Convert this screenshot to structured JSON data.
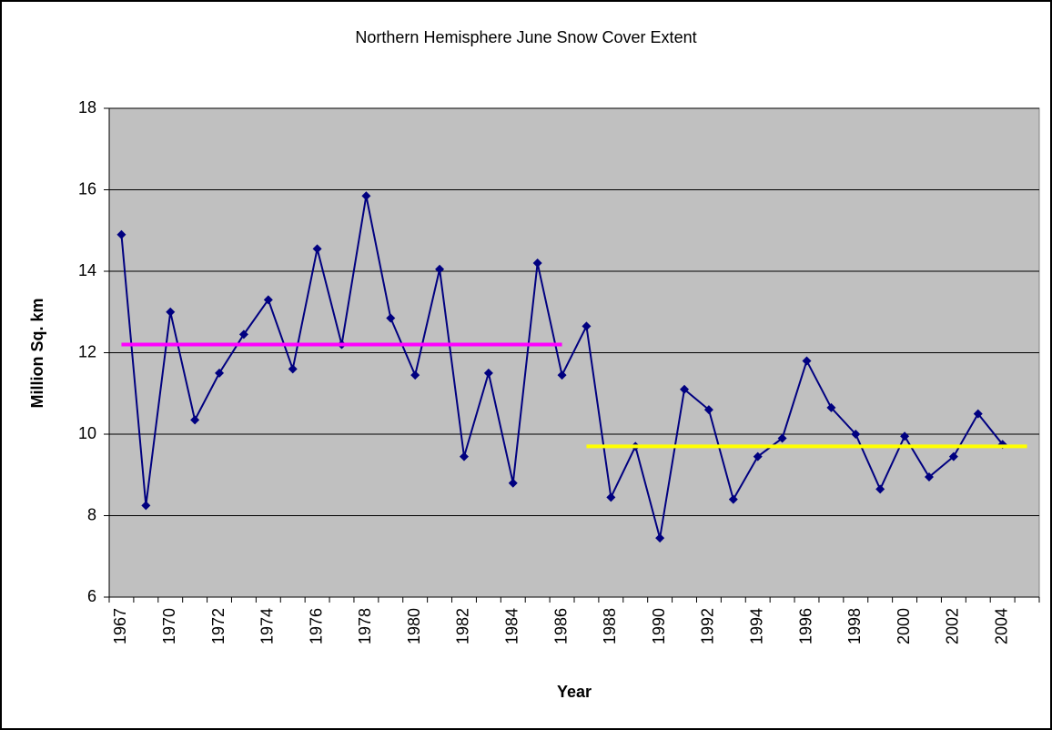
{
  "chart_data": {
    "type": "line",
    "title": "Northern Hemisphere June Snow Cover Extent",
    "x_label": "Year",
    "y_label": "Million Sq. km",
    "categories": [
      "1967",
      null,
      "1970",
      null,
      "1972",
      null,
      "1974",
      null,
      "1976",
      null,
      "1978",
      null,
      "1980",
      null,
      "1982",
      null,
      "1984",
      null,
      "1986",
      null,
      "1988",
      null,
      "1990",
      null,
      "1992",
      null,
      "1994",
      null,
      "1996",
      null,
      "1998",
      null,
      "2000",
      null,
      "2002",
      null,
      "2004",
      null
    ],
    "series": [
      {
        "color": "#000080",
        "marker": "diamond",
        "values": [
          14.9,
          8.25,
          13.0,
          10.35,
          11.5,
          12.45,
          13.3,
          11.6,
          14.55,
          12.2,
          15.85,
          12.85,
          11.45,
          14.05,
          9.45,
          11.5,
          8.8,
          14.2,
          11.45,
          12.65,
          8.45,
          9.7,
          7.45,
          11.1,
          10.6,
          8.4,
          9.45,
          9.9,
          11.8,
          10.65,
          10.0,
          8.65,
          9.95,
          8.95,
          9.45,
          10.5,
          9.75,
          null
        ]
      },
      {
        "color": "#ff00ff",
        "values": [
          12.2,
          12.2,
          12.2,
          12.2,
          12.2,
          12.2,
          12.2,
          12.2,
          12.2,
          12.2,
          12.2,
          12.2,
          12.2,
          12.2,
          12.2,
          12.2,
          12.2,
          12.2,
          12.2,
          null,
          null,
          null,
          null,
          null,
          null,
          null,
          null,
          null,
          null,
          null,
          null,
          null,
          null,
          null,
          null,
          null,
          null,
          null
        ]
      },
      {
        "color": "#ffff00",
        "values": [
          null,
          null,
          null,
          null,
          null,
          null,
          null,
          null,
          null,
          null,
          null,
          null,
          null,
          null,
          null,
          null,
          null,
          null,
          null,
          9.7,
          9.7,
          9.7,
          9.7,
          9.7,
          9.7,
          9.7,
          9.7,
          9.7,
          9.7,
          9.7,
          9.7,
          9.7,
          9.7,
          9.7,
          9.7,
          9.7,
          9.7,
          9.7
        ]
      }
    ],
    "ylim": [
      6,
      18
    ],
    "yticks": [
      6,
      8,
      10,
      12,
      14,
      16,
      18
    ],
    "grid": true,
    "plot_background": "#c0c0c0"
  }
}
